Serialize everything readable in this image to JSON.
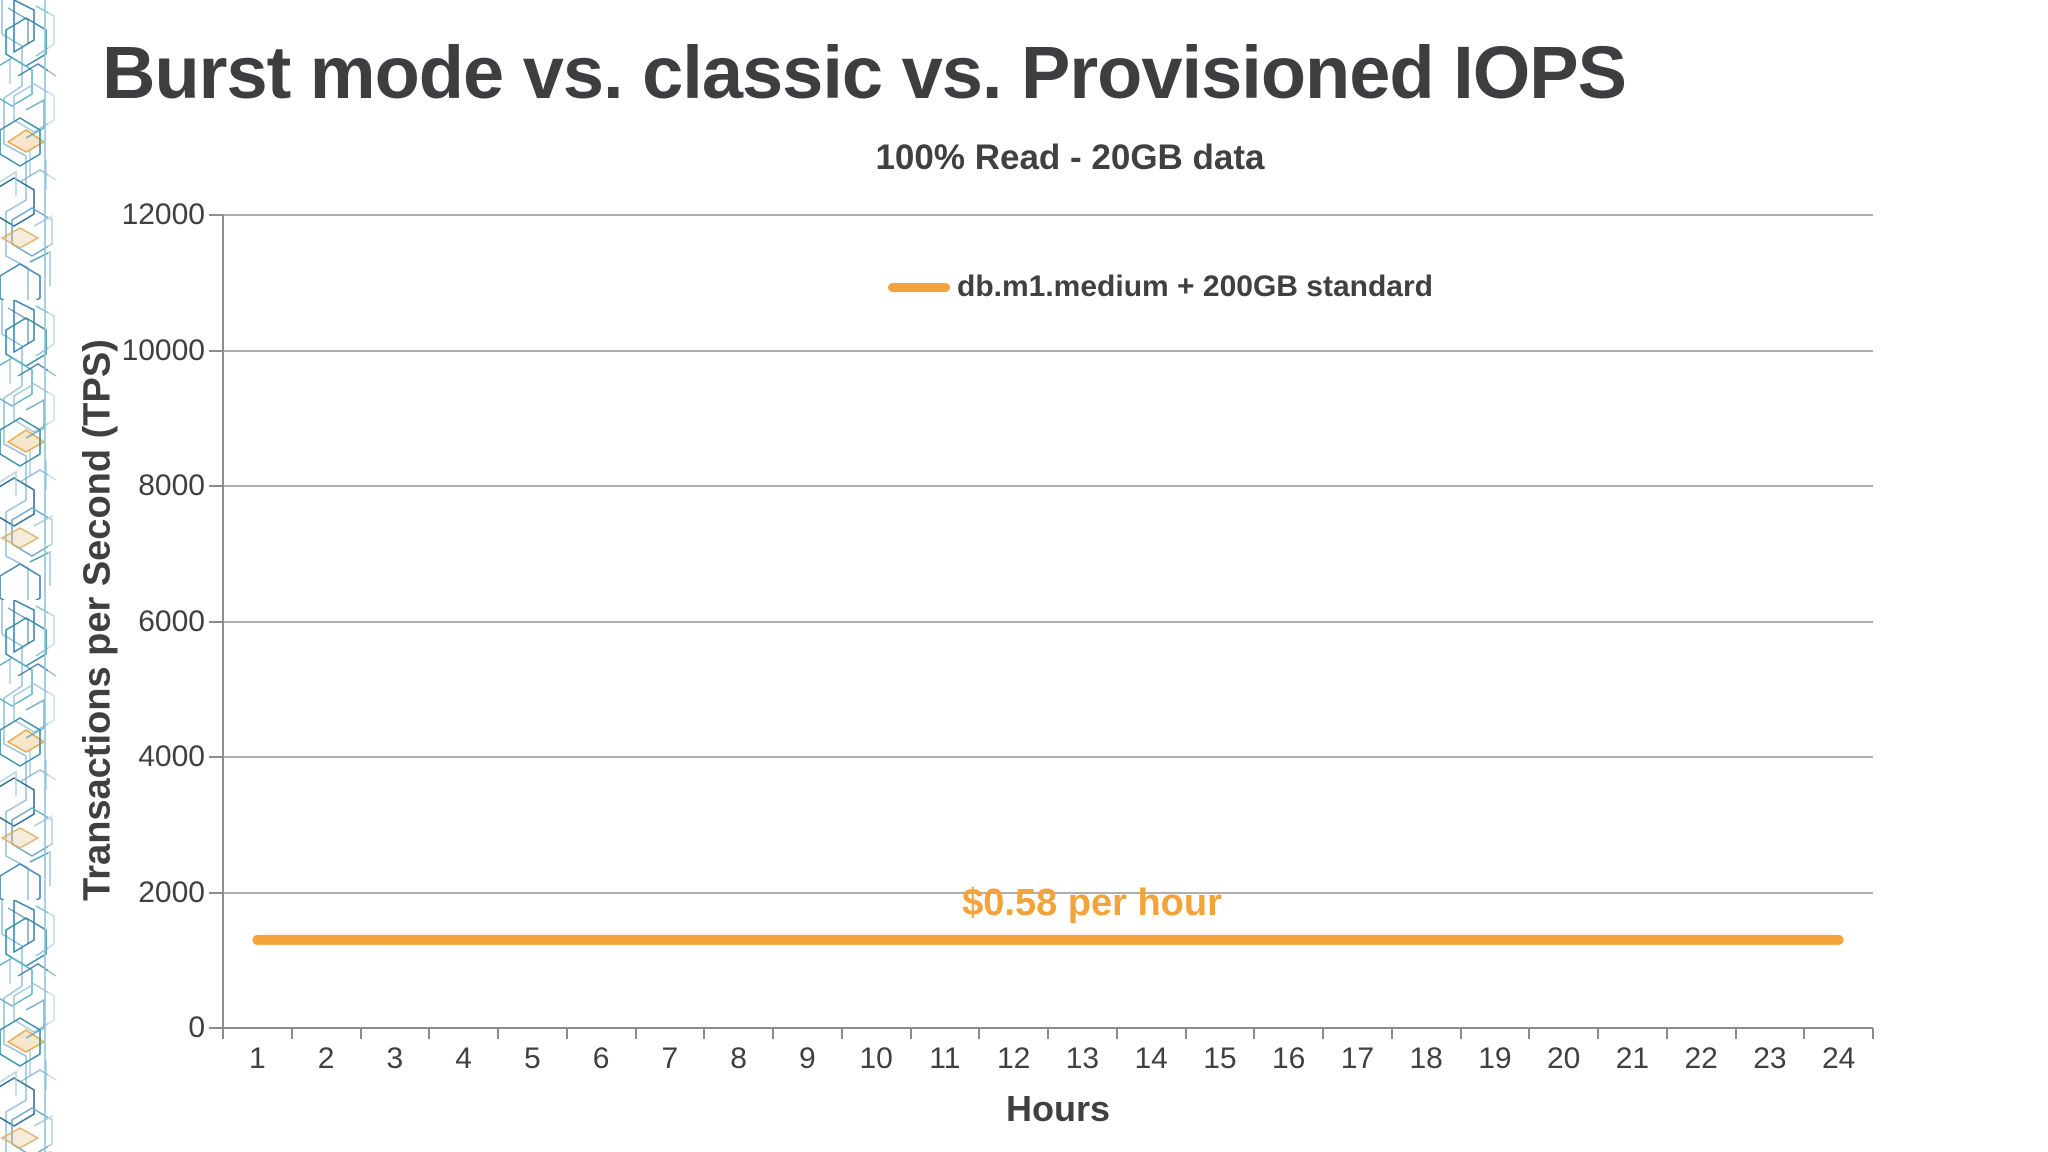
{
  "slide": {
    "title": "Burst mode vs. classic vs. Provisioned IOPS",
    "subtitle": "100% Read - 20GB data"
  },
  "chart_data": {
    "type": "line",
    "title": "100% Read - 20GB data",
    "xlabel": "Hours",
    "ylabel": "Transactions per Second (TPS)",
    "x": [
      1,
      2,
      3,
      4,
      5,
      6,
      7,
      8,
      9,
      10,
      11,
      12,
      13,
      14,
      15,
      16,
      17,
      18,
      19,
      20,
      21,
      22,
      23,
      24
    ],
    "series": [
      {
        "name": "db.m1.medium + 200GB standard",
        "color": "#F2A43A",
        "values": [
          1300,
          1300,
          1300,
          1300,
          1300,
          1300,
          1300,
          1300,
          1300,
          1300,
          1300,
          1300,
          1300,
          1300,
          1300,
          1300,
          1300,
          1300,
          1300,
          1300,
          1300,
          1300,
          1300,
          1300
        ]
      }
    ],
    "ylim": [
      0,
      12000
    ],
    "ytick_step": 2000,
    "yticks": [
      0,
      2000,
      4000,
      6000,
      8000,
      10000,
      12000
    ],
    "grid": "horizontal",
    "legend_position": "top-center-inside",
    "annotation": {
      "text": "$0.58 per hour",
      "color": "#F2A43A"
    }
  },
  "colors": {
    "background": "#ffffff",
    "text": "#404040",
    "title_text": "#3e3e40",
    "gridline": "#aeaeae",
    "axis": "#8c8c8c",
    "accent_orange": "#F2A43A"
  },
  "decor": {
    "left_border": "isometric-circuit-pattern"
  }
}
